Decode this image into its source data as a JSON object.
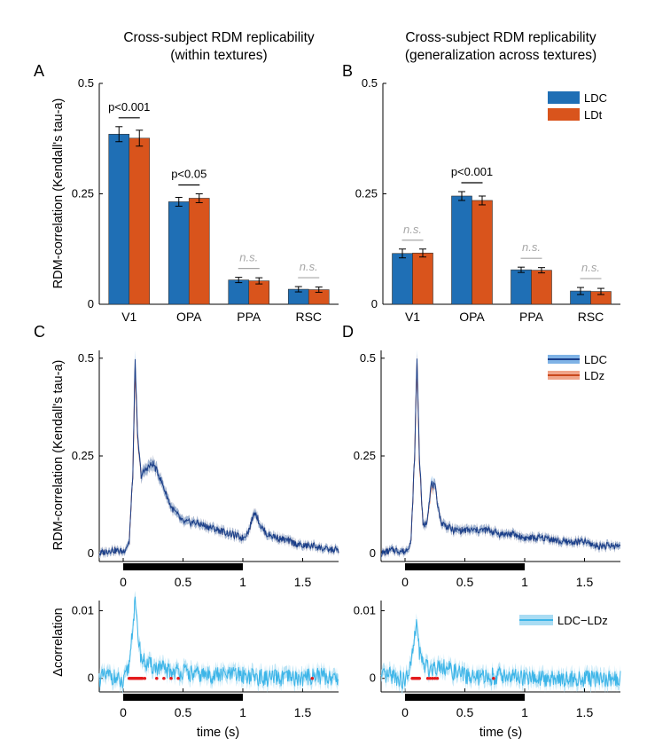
{
  "colors": {
    "ldc": "#1f6fb5",
    "ldt": "#d9541c",
    "ldc_line": "#1a3f8a",
    "ldz_line": "#c9481c",
    "ldc_band": "#7fb3e6",
    "ldz_band": "#f0a58a",
    "diff_line": "#3db5e8",
    "diff_band": "#a9dcf3",
    "sig_dots": "#e41a1c",
    "ns_text": "#a6a6a6",
    "axis": "#000000",
    "stim_bar": "#000000"
  },
  "titles": {
    "left_line1": "Cross-subject RDM replicability",
    "left_line2": "(within textures)",
    "right_line1": "Cross-subject RDM replicability",
    "right_line2": "(generalization across textures)"
  },
  "panel_labels": {
    "a": "A",
    "b": "B",
    "c": "C",
    "d": "D"
  },
  "ylabel_top": "RDM-correlation (Kendall's tau-a)",
  "ylabel_mid": "RDM-correlation (Kendall's tau-a)",
  "ylabel_bottom": "Δcorrelation",
  "xlabel_time": "time (s)",
  "legend_bar": {
    "ldc": "LDC",
    "ldt": "LDt"
  },
  "legend_line": {
    "ldc": "LDC",
    "ldz": "LDz"
  },
  "legend_diff": {
    "label": "LDC−LDz"
  },
  "chart_data": [
    {
      "panel": "A",
      "type": "bar",
      "categories": [
        "V1",
        "OPA",
        "PPA",
        "RSC"
      ],
      "series": [
        {
          "name": "LDC",
          "values": [
            0.385,
            0.232,
            0.055,
            0.034
          ],
          "errors": [
            0.017,
            0.01,
            0.006,
            0.006
          ]
        },
        {
          "name": "LDt",
          "values": [
            0.376,
            0.24,
            0.053,
            0.033
          ],
          "errors": [
            0.018,
            0.01,
            0.007,
            0.006
          ]
        }
      ],
      "annotations": [
        "p<0.001",
        "p<0.05",
        "n.s.",
        "n.s."
      ],
      "ylim": [
        0,
        0.5
      ],
      "yticks": [
        0,
        0.25,
        0.5
      ],
      "ytick_labels": [
        "0",
        "0.25",
        "0.5"
      ]
    },
    {
      "panel": "B",
      "type": "bar",
      "categories": [
        "V1",
        "OPA",
        "PPA",
        "RSC"
      ],
      "series": [
        {
          "name": "LDC",
          "values": [
            0.115,
            0.245,
            0.078,
            0.03
          ],
          "errors": [
            0.01,
            0.01,
            0.006,
            0.008
          ]
        },
        {
          "name": "LDt",
          "values": [
            0.116,
            0.235,
            0.077,
            0.029
          ],
          "errors": [
            0.009,
            0.01,
            0.006,
            0.007
          ]
        }
      ],
      "annotations": [
        "n.s.",
        "p<0.001",
        "n.s.",
        "n.s."
      ],
      "ylim": [
        0,
        0.5
      ],
      "yticks": [
        0,
        0.25,
        0.5
      ],
      "ytick_labels": [
        "0",
        "0.25",
        "0.5"
      ]
    },
    {
      "panel": "C",
      "type": "line",
      "x": [
        -0.2,
        -0.1,
        0,
        0.05,
        0.08,
        0.1,
        0.12,
        0.15,
        0.2,
        0.25,
        0.3,
        0.35,
        0.4,
        0.5,
        0.6,
        0.7,
        0.8,
        0.9,
        1.0,
        1.05,
        1.1,
        1.15,
        1.2,
        1.3,
        1.4,
        1.5,
        1.6,
        1.7,
        1.8
      ],
      "series": [
        {
          "name": "LDC",
          "values": [
            0.0,
            0.01,
            0.005,
            0.03,
            0.2,
            0.5,
            0.3,
            0.2,
            0.22,
            0.23,
            0.2,
            0.16,
            0.12,
            0.08,
            0.08,
            0.07,
            0.06,
            0.05,
            0.04,
            0.06,
            0.11,
            0.07,
            0.05,
            0.04,
            0.03,
            0.02,
            0.02,
            0.01,
            0.01
          ]
        },
        {
          "name": "LDz",
          "values": [
            0.0,
            0.01,
            0.005,
            0.03,
            0.2,
            0.48,
            0.29,
            0.2,
            0.22,
            0.23,
            0.2,
            0.16,
            0.12,
            0.08,
            0.08,
            0.07,
            0.06,
            0.05,
            0.04,
            0.06,
            0.11,
            0.07,
            0.05,
            0.04,
            0.03,
            0.02,
            0.02,
            0.01,
            0.01
          ]
        }
      ],
      "xlim": [
        -0.2,
        1.8
      ],
      "ylim": [
        -0.02,
        0.52
      ],
      "xticks": [
        0,
        0.5,
        1,
        1.5
      ],
      "xtick_labels": [
        "0",
        "0.5",
        "1",
        "1.5"
      ],
      "yticks": [
        0,
        0.25,
        0.5
      ],
      "ytick_labels": [
        "0",
        "0.25",
        "0.5"
      ],
      "stimulus_interval": [
        0,
        1
      ]
    },
    {
      "panel": "D",
      "type": "line",
      "x": [
        -0.2,
        -0.1,
        0,
        0.05,
        0.08,
        0.1,
        0.12,
        0.15,
        0.18,
        0.22,
        0.25,
        0.3,
        0.4,
        0.5,
        0.6,
        0.7,
        0.8,
        0.9,
        1.0,
        1.1,
        1.2,
        1.3,
        1.4,
        1.5,
        1.6,
        1.7,
        1.8
      ],
      "series": [
        {
          "name": "LDC",
          "values": [
            0.0,
            0.01,
            0.005,
            0.03,
            0.25,
            0.5,
            0.25,
            0.07,
            0.08,
            0.18,
            0.17,
            0.08,
            0.06,
            0.06,
            0.06,
            0.06,
            0.05,
            0.05,
            0.04,
            0.04,
            0.04,
            0.03,
            0.03,
            0.03,
            0.02,
            0.02,
            0.02
          ]
        },
        {
          "name": "LDz",
          "values": [
            0.0,
            0.01,
            0.005,
            0.03,
            0.25,
            0.49,
            0.24,
            0.07,
            0.08,
            0.17,
            0.17,
            0.08,
            0.06,
            0.06,
            0.06,
            0.06,
            0.05,
            0.05,
            0.04,
            0.04,
            0.04,
            0.03,
            0.03,
            0.03,
            0.02,
            0.02,
            0.02
          ]
        }
      ],
      "xlim": [
        -0.2,
        1.8
      ],
      "ylim": [
        -0.02,
        0.52
      ],
      "xticks": [
        0,
        0.5,
        1,
        1.5
      ],
      "xtick_labels": [
        "0",
        "0.5",
        "1",
        "1.5"
      ],
      "yticks": [
        0,
        0.25,
        0.5
      ],
      "ytick_labels": [
        "0",
        "0.25",
        "0.5"
      ],
      "stimulus_interval": [
        0,
        1
      ]
    },
    {
      "panel": "C-diff",
      "type": "line",
      "x": [
        -0.2,
        -0.1,
        0,
        0.05,
        0.08,
        0.1,
        0.12,
        0.15,
        0.2,
        0.3,
        0.4,
        0.5,
        0.6,
        0.8,
        1.0,
        1.2,
        1.4,
        1.5,
        1.6,
        1.8
      ],
      "series": [
        {
          "name": "LDC−LDz",
          "values": [
            0.0,
            0.0005,
            -0.001,
            0.002,
            0.008,
            0.011,
            0.007,
            0.003,
            0.002,
            0.0015,
            0.001,
            0.001,
            0.0005,
            0.0005,
            0.0005,
            0.0,
            0.0,
            0.0,
            0.0005,
            0.0
          ]
        }
      ],
      "significant_times": [
        0.05,
        0.06,
        0.07,
        0.08,
        0.09,
        0.1,
        0.11,
        0.12,
        0.13,
        0.14,
        0.15,
        0.16,
        0.18,
        0.28,
        0.34,
        0.4,
        0.46,
        1.58
      ],
      "xlim": [
        -0.2,
        1.8
      ],
      "ylim": [
        -0.002,
        0.0115
      ],
      "xticks": [
        0,
        0.5,
        1,
        1.5
      ],
      "xtick_labels": [
        "0",
        "0.5",
        "1",
        "1.5"
      ],
      "yticks": [
        0,
        0.01
      ],
      "ytick_labels": [
        "0",
        "0.01"
      ],
      "stimulus_interval": [
        0,
        1
      ]
    },
    {
      "panel": "D-diff",
      "type": "line",
      "x": [
        -0.2,
        -0.1,
        0,
        0.05,
        0.08,
        0.1,
        0.12,
        0.15,
        0.2,
        0.3,
        0.4,
        0.5,
        0.6,
        0.8,
        1.0,
        1.2,
        1.4,
        1.6,
        1.8
      ],
      "series": [
        {
          "name": "LDC−LDz",
          "values": [
            0.0,
            0.0005,
            -0.0005,
            0.002,
            0.006,
            0.008,
            0.004,
            0.002,
            0.0015,
            0.002,
            0.001,
            0.0005,
            0.0,
            0.0005,
            0.0,
            0.0,
            0.0,
            0.0,
            0.0
          ]
        }
      ],
      "significant_times": [
        0.06,
        0.07,
        0.08,
        0.09,
        0.1,
        0.11,
        0.12,
        0.19,
        0.21,
        0.23,
        0.25,
        0.27,
        0.74
      ],
      "xlim": [
        -0.2,
        1.8
      ],
      "ylim": [
        -0.002,
        0.0115
      ],
      "xticks": [
        0,
        0.5,
        1,
        1.5
      ],
      "xtick_labels": [
        "0",
        "0.5",
        "1",
        "1.5"
      ],
      "yticks": [
        0,
        0.01
      ],
      "ytick_labels": [
        "0",
        "0.01"
      ],
      "stimulus_interval": [
        0,
        1
      ]
    }
  ]
}
